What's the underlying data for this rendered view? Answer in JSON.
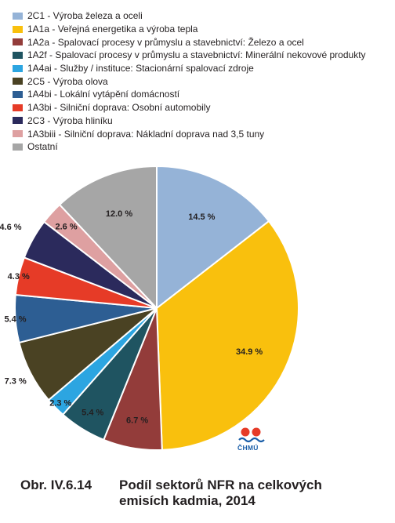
{
  "chart_data": {
    "type": "pie",
    "unit": "%",
    "slices": [
      {
        "code": "2C1",
        "label": "2C1 - Výroba železa a oceli",
        "value": 14.5,
        "value_label": "14.5 %",
        "color": "#95b3d7"
      },
      {
        "code": "1A1a",
        "label": "1A1a - Veřejná energetika a výroba tepla",
        "value": 34.9,
        "value_label": "34.9 %",
        "color": "#f9c00d"
      },
      {
        "code": "1A2a",
        "label": "1A2a - Spalovací procesy v průmyslu a stavebnictví: Železo a ocel",
        "value": 6.7,
        "value_label": "6.7 %",
        "color": "#933c3a"
      },
      {
        "code": "1A2f",
        "label": "1A2f - Spalovací procesy v průmyslu a stavebnictví: Minerální nekovové produkty",
        "value": 5.4,
        "value_label": "5.4 %",
        "color": "#1f5461"
      },
      {
        "code": "1A4ai",
        "label": "1A4ai - Služby / instituce: Stacionární spalovací zdroje",
        "value": 2.3,
        "value_label": "2.3 %",
        "color": "#2ca5e1"
      },
      {
        "code": "2C5",
        "label": "2C5 - Výroba olova",
        "value": 7.3,
        "value_label": "7.3 %",
        "color": "#4a4223"
      },
      {
        "code": "1A4bi",
        "label": "1A4bi - Lokální vytápění domácností",
        "value": 5.4,
        "value_label": "5.4 %",
        "color": "#2d5e93"
      },
      {
        "code": "1A3bi",
        "label": "1A3bi - Silniční doprava: Osobní automobily",
        "value": 4.3,
        "value_label": "4.3 %",
        "color": "#e63b27"
      },
      {
        "code": "2C3",
        "label": "2C3 - Výroba hliníku",
        "value": 4.6,
        "value_label": "4.6 %",
        "color": "#2b2a5c"
      },
      {
        "code": "1A3biii",
        "label": "1A3biii - Silniční doprava: Nákladní doprava nad 3,5 tuny",
        "value": 2.6,
        "value_label": "2.6 %",
        "color": "#dea0a1"
      },
      {
        "code": "Ostatní",
        "label": "Ostatní",
        "value": 12.0,
        "value_label": "12.0 %",
        "color": "#a6a6a6"
      }
    ],
    "legend_placement": "top-left"
  },
  "logo": {
    "text": "ČHMÚ"
  },
  "caption": {
    "prefix": "Obr. IV.6.14",
    "line1": "Podíl sektorů NFR na celkových",
    "line2": "emisích kadmia, 2014"
  }
}
